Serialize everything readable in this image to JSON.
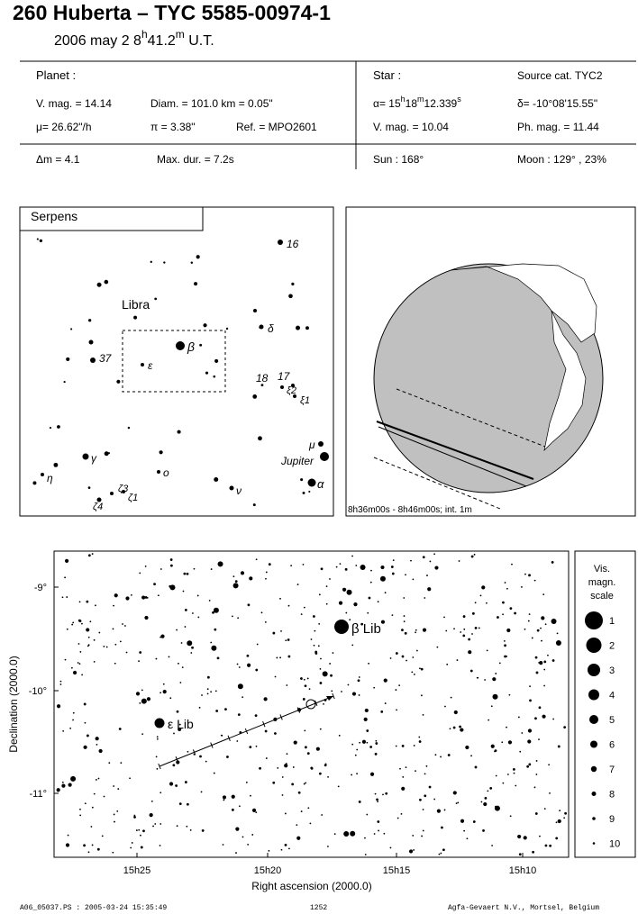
{
  "header": {
    "title": "260 Huberta  –  TYC 5585-00974-1",
    "date": [
      "2006 may  2  8",
      "h",
      "41.2",
      "m",
      " U.T."
    ]
  },
  "info": {
    "planet": {
      "heading": "Planet :",
      "vmag": "V. mag. = 14.14",
      "diam": "Diam. = 101.0 km = 0.05\"",
      "motion": "μ=  26.62\"/h",
      "parallax": "π =  3.38\"",
      "ref": "Ref. = MPO2601"
    },
    "star": {
      "heading": "Star :",
      "source": "Source cat.  TYC2",
      "alpha": [
        "α= 15",
        "h",
        "18",
        "m",
        "12.339",
        "s"
      ],
      "delta": "δ= -10°08'15.55\"",
      "vmag": "V. mag. = 10.04",
      "phmag": "Ph. mag. = 11.44"
    },
    "footer_row": {
      "dm": "Δm = 4.1",
      "maxdur": "Max. dur. = 7.2s",
      "sun": "Sun : 168°",
      "moon": "Moon : 129° , 23%"
    }
  },
  "finder": {
    "labels": [
      "Serpens",
      "Libra",
      "16",
      "δ",
      "β",
      "ε",
      "37",
      "18",
      "17",
      "ξ2",
      "ξ1",
      "μ",
      "Jupiter",
      "γ",
      "η",
      "ο",
      "ν",
      "α",
      "ζ3",
      "ζ1",
      "ζ4"
    ]
  },
  "globe": {
    "caption": "8h36m00s -  8h46m00s; int.  1m"
  },
  "chart": {
    "yticks": [
      "-9°",
      "-10°",
      "-11°"
    ],
    "xticks": [
      "15h25",
      "15h20",
      "15h15",
      "15h10"
    ],
    "star_labels": [
      "β Lib",
      "ε Lib"
    ],
    "ylabel": "Declination (2000.0)",
    "xlabel": "Right ascension (2000.0)"
  },
  "scale": {
    "title": [
      "Vis.",
      "magn.",
      "scale"
    ],
    "magnitudes": [
      1,
      2,
      3,
      4,
      5,
      6,
      7,
      8,
      9,
      10
    ]
  },
  "footer": {
    "file": "A06_05037.PS : 2005-03-24 15:35:49",
    "number": "1252",
    "company": "Agfa-Gevaert N.V., Mortsel, Belgium"
  }
}
